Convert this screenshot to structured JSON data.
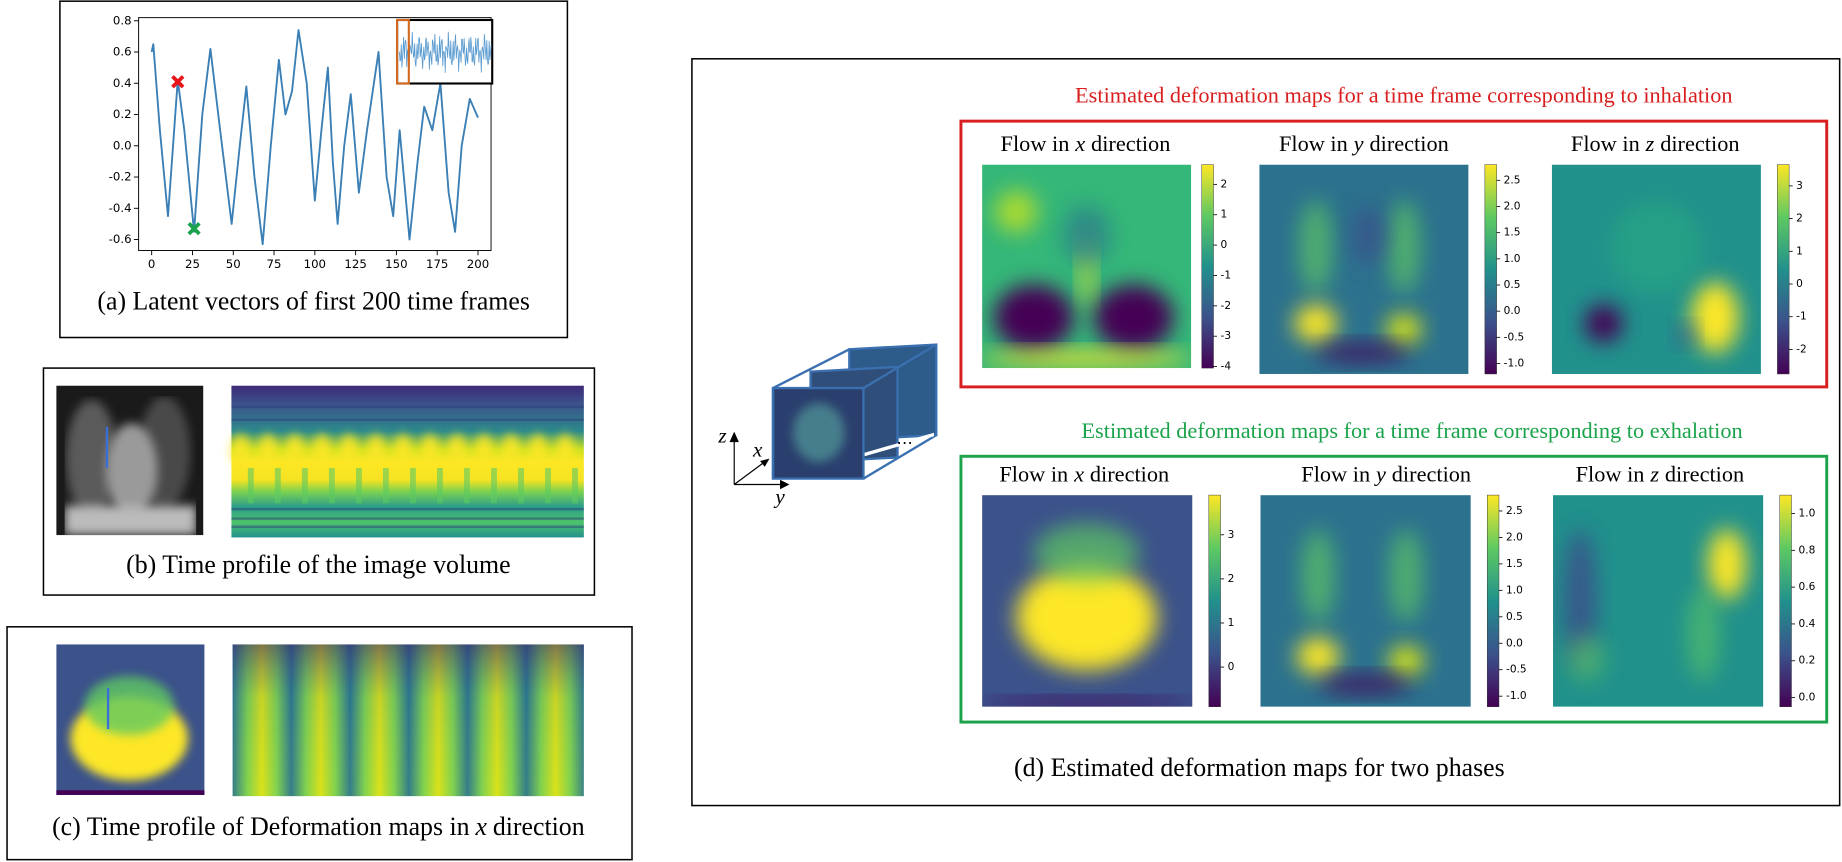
{
  "chart_data": {
    "type": "line",
    "x": [
      0,
      1,
      5,
      10,
      16,
      20,
      26,
      31,
      36,
      42,
      49,
      54,
      58,
      63,
      68,
      73,
      78,
      82,
      86,
      90,
      95,
      100,
      104,
      108,
      111,
      114,
      118,
      122,
      127,
      132,
      139,
      144,
      148,
      152,
      155,
      158,
      163,
      167,
      172,
      177,
      182,
      186,
      190,
      195,
      200
    ],
    "series": [
      {
        "color": "#3a7fb5",
        "values": [
          0.6,
          0.65,
          0.1,
          -0.45,
          0.42,
          0.1,
          -0.55,
          0.2,
          0.62,
          0.1,
          -0.5,
          0.0,
          0.38,
          -0.2,
          -0.63,
          0.0,
          0.55,
          0.2,
          0.35,
          0.74,
          0.4,
          -0.35,
          0.1,
          0.5,
          -0.1,
          -0.5,
          0.0,
          0.33,
          -0.3,
          0.1,
          0.6,
          -0.2,
          -0.45,
          0.1,
          -0.25,
          -0.6,
          -0.1,
          0.25,
          0.1,
          0.4,
          -0.3,
          -0.55,
          0.0,
          0.3,
          0.18
        ]
      }
    ],
    "markers": [
      {
        "x": 16,
        "y": 0.41,
        "color": "#e8141c"
      },
      {
        "x": 26,
        "y": -0.53,
        "color": "#1aa34a"
      }
    ],
    "xlim": [
      -8,
      208
    ],
    "ylim": [
      -0.67,
      0.82
    ],
    "xticks": [
      0,
      25,
      50,
      75,
      100,
      125,
      150,
      175,
      200
    ],
    "yticks": [
      {
        "value": -0.6,
        "label": "-0.6"
      },
      {
        "value": -0.4,
        "label": "-0.4"
      },
      {
        "value": -0.2,
        "label": "-0.2"
      },
      {
        "value": 0,
        "label": "0.0"
      },
      {
        "value": 0.2,
        "label": "0.2"
      },
      {
        "value": 0.4,
        "label": "0.4"
      },
      {
        "value": 0.6,
        "label": "0.6"
      },
      {
        "value": 0.8,
        "label": "0.8"
      }
    ]
  },
  "panels": {
    "a": {
      "caption": "(a) Latent vectors of first 200 time frames"
    },
    "b": {
      "caption": "(b) Time profile of the image volume"
    },
    "c": {
      "caption": {
        "pre": "(c) Time profile of Deformation maps in",
        "var": "x",
        "post": "direction"
      }
    },
    "d": {
      "caption": "(d) Estimated deformation maps for two phases",
      "axes": {
        "z": "z",
        "x": "x",
        "y": "y"
      },
      "ellipsis": "⋯",
      "inhalation": {
        "title": "Estimated deformation maps for a time frame corresponding to inhalation",
        "maps": [
          {
            "title": {
              "pre": "Flow in",
              "var": "x",
              "post": "direction"
            },
            "colorbar": {
              "lim": [
                -4.05,
                2.65
              ],
              "ticks": [
                2,
                1,
                0,
                -1,
                -2,
                -3,
                -4
              ]
            }
          },
          {
            "title": {
              "pre": "Flow in",
              "var": "y",
              "post": "direction"
            },
            "colorbar": {
              "lim": [
                -1.2,
                2.8
              ],
              "ticks": [
                {
                  "value": 2.5,
                  "label": "2.5"
                },
                {
                  "value": 2,
                  "label": "2.0"
                },
                {
                  "value": 1.5,
                  "label": "1.5"
                },
                {
                  "value": 1,
                  "label": "1.0"
                },
                {
                  "value": 0.5,
                  "label": "0.5"
                },
                {
                  "value": 0,
                  "label": "0.0"
                },
                {
                  "value": -0.5,
                  "label": "-0.5"
                },
                {
                  "value": -1,
                  "label": "-1.0"
                }
              ]
            }
          },
          {
            "title": {
              "pre": "Flow in",
              "var": "z",
              "post": "direction"
            },
            "colorbar": {
              "lim": [
                -2.75,
                3.65
              ],
              "ticks": [
                3,
                2,
                1,
                0,
                -1,
                -2
              ]
            }
          }
        ]
      },
      "exhalation": {
        "title": "Estimated deformation maps for a time frame corresponding to exhalation",
        "maps": [
          {
            "title": {
              "pre": "Flow in",
              "var": "x",
              "post": "direction"
            },
            "colorbar": {
              "lim": [
                -0.9,
                3.9
              ],
              "ticks": [
                3,
                2,
                1,
                0
              ]
            }
          },
          {
            "title": {
              "pre": "Flow in",
              "var": "y",
              "post": "direction"
            },
            "colorbar": {
              "lim": [
                -1.2,
                2.8
              ],
              "ticks": [
                {
                  "value": 2.5,
                  "label": "2.5"
                },
                {
                  "value": 2,
                  "label": "2.0"
                },
                {
                  "value": 1.5,
                  "label": "1.5"
                },
                {
                  "value": 1,
                  "label": "1.0"
                },
                {
                  "value": 0.5,
                  "label": "0.5"
                },
                {
                  "value": 0,
                  "label": "0.0"
                },
                {
                  "value": -0.5,
                  "label": "-0.5"
                },
                {
                  "value": -1,
                  "label": "-1.0"
                }
              ]
            }
          },
          {
            "title": {
              "pre": "Flow in",
              "var": "z",
              "post": "direction"
            },
            "colorbar": {
              "lim": [
                -0.05,
                1.1
              ],
              "ticks": [
                {
                  "value": 1,
                  "label": "1.0"
                },
                {
                  "value": 0.8,
                  "label": "0.8"
                },
                {
                  "value": 0.6,
                  "label": "0.6"
                },
                {
                  "value": 0.4,
                  "label": "0.4"
                },
                {
                  "value": 0.2,
                  "label": "0.2"
                },
                {
                  "value": 0,
                  "label": "0.0"
                }
              ]
            }
          }
        ]
      }
    }
  }
}
